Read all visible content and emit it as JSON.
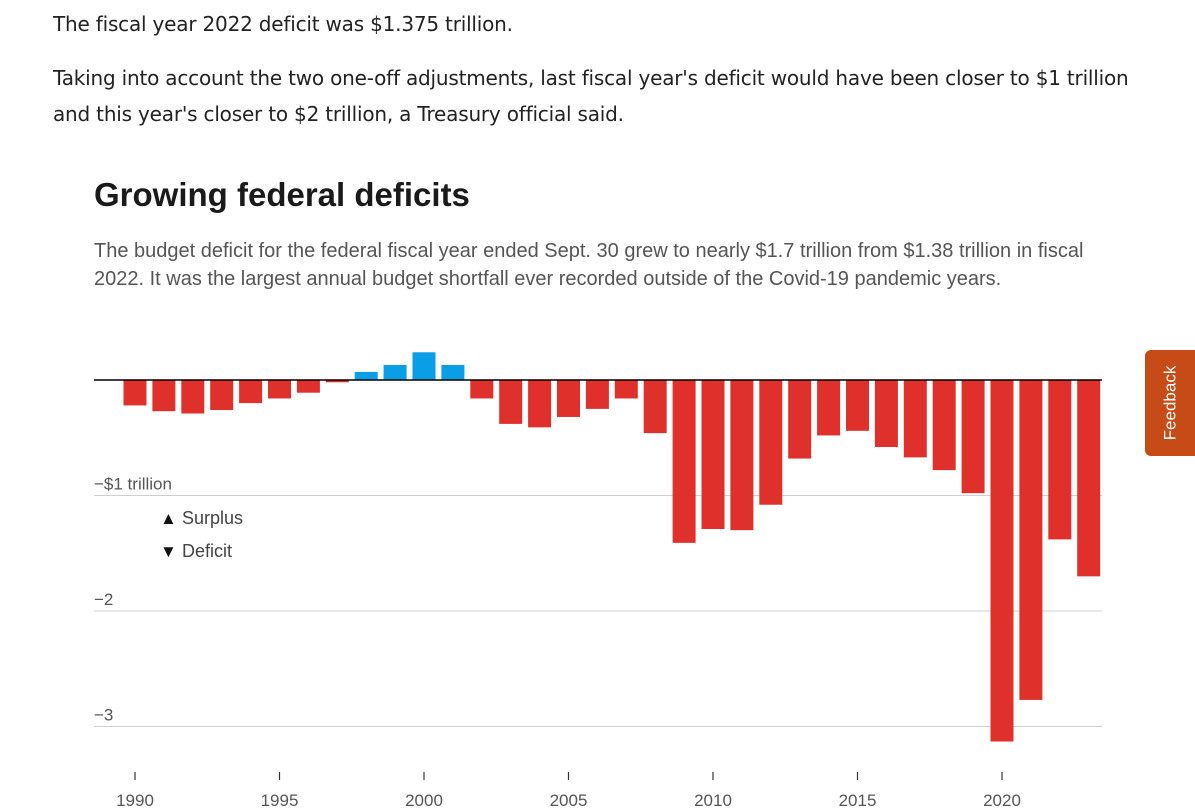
{
  "article": {
    "paragraph_1": "The fiscal year 2022 deficit was $1.375 trillion.",
    "paragraph_2": "Taking into account the two one-off adjustments, last fiscal year's deficit would have been closer to $1 trillion and this year's closer to $2 trillion, a Treasury official said."
  },
  "feedback_label": "Feedback",
  "colors": {
    "surplus": "#0a9ee6",
    "deficit": "#e0302b",
    "grid": "#cfcfcf",
    "axis": "#000000"
  },
  "chart_data": {
    "type": "bar",
    "title": "Growing federal deficits",
    "subtitle": "The budget deficit for the federal fiscal year ended Sept. 30 grew to nearly $1.7 trillion from $1.38 trillion in fiscal 2022. It was the largest annual budget shortfall ever recorded outside of the Covid-19 pandemic years.",
    "xlabel": "",
    "ylabel": "",
    "units": "trillions of dollars",
    "ylim": [
      -3.15,
      0.24
    ],
    "yticks": [
      {
        "value": -1,
        "label": "−$1 trillion"
      },
      {
        "value": -2,
        "label": "−2"
      },
      {
        "value": -3,
        "label": "−3"
      }
    ],
    "xticks": [
      1990,
      1995,
      2000,
      2005,
      2010,
      2015,
      2020
    ],
    "grid": true,
    "legend": [
      {
        "symbol": "▲",
        "label": "Surplus"
      },
      {
        "symbol": "▼",
        "label": "Deficit"
      }
    ],
    "legend_position": "top-left",
    "x": [
      1990,
      1991,
      1992,
      1993,
      1994,
      1995,
      1996,
      1997,
      1998,
      1999,
      2000,
      2001,
      2002,
      2003,
      2004,
      2005,
      2006,
      2007,
      2008,
      2009,
      2010,
      2011,
      2012,
      2013,
      2014,
      2015,
      2016,
      2017,
      2018,
      2019,
      2020,
      2021,
      2022,
      2023
    ],
    "values": [
      -0.22,
      -0.27,
      -0.29,
      -0.26,
      -0.2,
      -0.16,
      -0.11,
      -0.02,
      0.07,
      0.13,
      0.24,
      0.13,
      -0.16,
      -0.38,
      -0.41,
      -0.32,
      -0.25,
      -0.16,
      -0.46,
      -1.41,
      -1.29,
      -1.3,
      -1.08,
      -0.68,
      -0.48,
      -0.44,
      -0.58,
      -0.67,
      -0.78,
      -0.98,
      -3.13,
      -2.77,
      -1.38,
      -1.7
    ]
  }
}
